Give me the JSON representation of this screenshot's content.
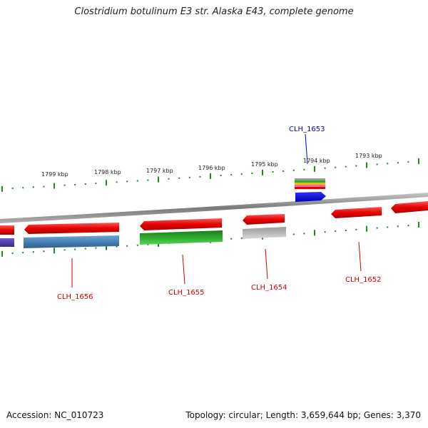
{
  "title": "Clostridium botulinum E3 str. Alaska E43, complete genome",
  "footer": {
    "accession": "Accession: NC_010723",
    "summary": "Topology: circular; Length: 3,659,644 bp; Genes: 3,370"
  },
  "colors": {
    "tick": "#1f8a1f",
    "backbone": "#8a8a8a",
    "label_red": "#cc0000",
    "label_blue": "#0000cc"
  },
  "scale_labels": [
    "1799 kbp",
    "1798 kbp",
    "1797 kbp",
    "1796 kbp",
    "1795 kbp",
    "1794 kbp",
    "1793 kbp"
  ],
  "genes": [
    {
      "name": "CLH_1656",
      "color": "#cc0000"
    },
    {
      "name": "CLH_1655",
      "color": "#cc0000"
    },
    {
      "name": "CLH_1654",
      "color": "#cc0000"
    },
    {
      "name": "CLH_1653",
      "color": "#0000cc"
    },
    {
      "name": "CLH_1652",
      "color": "#cc0000"
    }
  ]
}
